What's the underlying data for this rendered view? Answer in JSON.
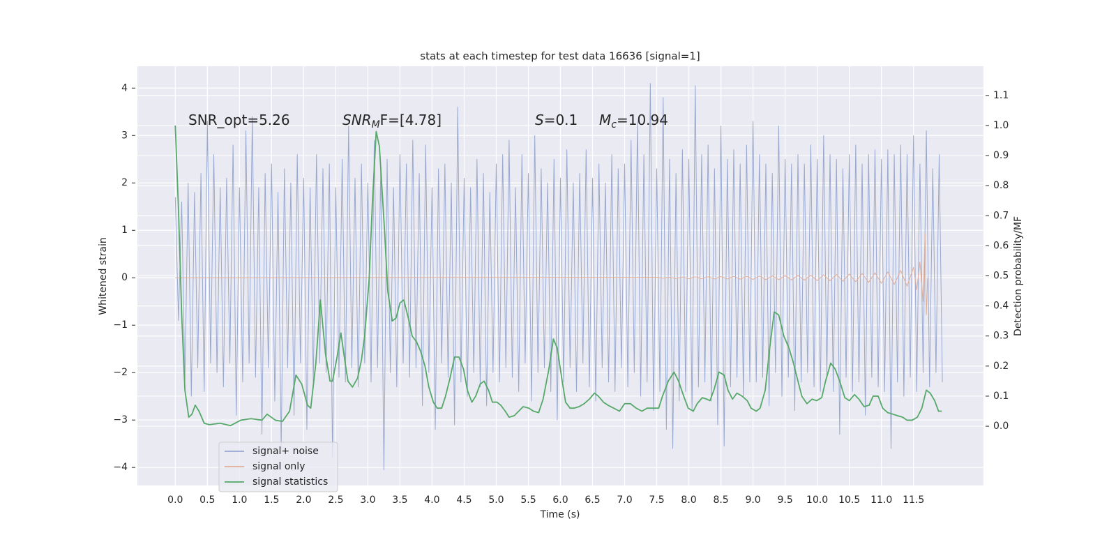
{
  "chart_data": {
    "type": "line",
    "title": "stats at each timestep for test data 16636 [signal=1]",
    "xlabel": "Time (s)",
    "ylabel": "Whitened strain",
    "y2label": "Detection probability/MF",
    "annotations": [
      {
        "text": "SNR_opt=5.26"
      },
      {
        "main": "SNR",
        "sub": "M",
        "tail": "F=[4.78]"
      },
      {
        "main": "S",
        "tail": "=0.1"
      },
      {
        "main": "M",
        "sub": "c",
        "tail": "=10.94"
      }
    ],
    "grid": true,
    "legend": "lower left",
    "xlim": [
      -0.59,
      12.59
    ],
    "ylim": [
      -4.38,
      4.46
    ],
    "y2lim": [
      -0.197,
      1.197
    ],
    "xticks": [
      {
        "value": 0,
        "label": "0.0"
      },
      0.5,
      {
        "value": 1,
        "label": "1.0"
      },
      1.5,
      {
        "value": 2,
        "label": "2.0"
      },
      2.5,
      {
        "value": 3,
        "label": "3.0"
      },
      3.5,
      {
        "value": 4,
        "label": "4.0"
      },
      4.5,
      {
        "value": 5,
        "label": "5.0"
      },
      5.5,
      {
        "value": 6,
        "label": "6.0"
      },
      6.5,
      {
        "value": 7,
        "label": "7.0"
      },
      7.5,
      {
        "value": 8,
        "label": "8.0"
      },
      8.5,
      {
        "value": 9,
        "label": "9.0"
      },
      9.5,
      {
        "value": 10,
        "label": "10.0"
      },
      10.5,
      {
        "value": 11,
        "label": "11.0"
      },
      11.5
    ],
    "yticks": [
      {
        "value": -4,
        "label": "−4"
      },
      {
        "value": -3,
        "label": "−3"
      },
      {
        "value": -2,
        "label": "−2"
      },
      {
        "value": -1,
        "label": "−1"
      },
      0,
      1,
      2,
      3,
      4
    ],
    "y2ticks": [
      {
        "value": 0,
        "label": "0.0"
      },
      0.1,
      0.2,
      0.3,
      0.4,
      0.5,
      0.6,
      0.7,
      0.8,
      0.9,
      {
        "value": 1,
        "label": "1.0"
      },
      1.1
    ],
    "series": [
      {
        "name": "signal+ noise",
        "color": "#98a8cf",
        "x": [
          0,
          0.05,
          0.1,
          0.15,
          0.2,
          0.25,
          0.3,
          0.35,
          0.4,
          0.45,
          0.5,
          0.55,
          0.6,
          0.65,
          0.7,
          0.75,
          0.8,
          0.85,
          0.9,
          0.95,
          1,
          1.05,
          1.1,
          1.15,
          1.2,
          1.25,
          1.3,
          1.35,
          1.4,
          1.45,
          1.5,
          1.55,
          1.6,
          1.65,
          1.7,
          1.75,
          1.8,
          1.85,
          1.9,
          1.95,
          2,
          2.05,
          2.1,
          2.15,
          2.2,
          2.25,
          2.3,
          2.35,
          2.4,
          2.45,
          2.5,
          2.55,
          2.6,
          2.65,
          2.7,
          2.75,
          2.8,
          2.85,
          2.9,
          2.95,
          3,
          3.05,
          3.1,
          3.15,
          3.2,
          3.25,
          3.3,
          3.35,
          3.4,
          3.45,
          3.5,
          3.55,
          3.6,
          3.65,
          3.7,
          3.75,
          3.8,
          3.85,
          3.9,
          3.95,
          4,
          4.05,
          4.1,
          4.15,
          4.2,
          4.25,
          4.3,
          4.35,
          4.4,
          4.45,
          4.5,
          4.55,
          4.6,
          4.65,
          4.7,
          4.75,
          4.8,
          4.85,
          4.9,
          4.95,
          5,
          5.05,
          5.1,
          5.15,
          5.2,
          5.25,
          5.3,
          5.35,
          5.4,
          5.45,
          5.5,
          5.55,
          5.6,
          5.65,
          5.7,
          5.75,
          5.8,
          5.85,
          5.9,
          5.95,
          6,
          6.05,
          6.1,
          6.15,
          6.2,
          6.25,
          6.3,
          6.35,
          6.4,
          6.45,
          6.5,
          6.55,
          6.6,
          6.65,
          6.7,
          6.75,
          6.8,
          6.85,
          6.9,
          6.95,
          7,
          7.05,
          7.1,
          7.15,
          7.2,
          7.25,
          7.3,
          7.35,
          7.4,
          7.45,
          7.5,
          7.55,
          7.6,
          7.65,
          7.7,
          7.75,
          7.8,
          7.85,
          7.9,
          7.95,
          8,
          8.05,
          8.1,
          8.15,
          8.2,
          8.25,
          8.3,
          8.35,
          8.4,
          8.45,
          8.5,
          8.55,
          8.6,
          8.65,
          8.7,
          8.75,
          8.8,
          8.85,
          8.9,
          8.95,
          9,
          9.05,
          9.1,
          9.15,
          9.2,
          9.25,
          9.3,
          9.35,
          9.4,
          9.45,
          9.5,
          9.55,
          9.6,
          9.65,
          9.7,
          9.75,
          9.8,
          9.85,
          9.9,
          9.95,
          10,
          10.05,
          10.1,
          10.15,
          10.2,
          10.25,
          10.3,
          10.35,
          10.4,
          10.45,
          10.5,
          10.55,
          10.6,
          10.65,
          10.7,
          10.75,
          10.8,
          10.85,
          10.9,
          10.95,
          11,
          11.05,
          11.1,
          11.15,
          11.2,
          11.25,
          11.3,
          11.35,
          11.4,
          11.45,
          11.5,
          11.55,
          11.6,
          11.65,
          11.7,
          11.75,
          11.8,
          11.85,
          11.9,
          11.95
        ],
        "values": [
          1.7,
          -0.9,
          1.6,
          -2.2,
          2.0,
          -2.5,
          1.8,
          -1.9,
          2.2,
          -2.4,
          3.3,
          -1.8,
          2.6,
          -2.0,
          1.9,
          -2.3,
          2.1,
          -1.8,
          2.8,
          -2.9,
          1.9,
          -2.2,
          3.1,
          -1.8,
          3.4,
          -2.1,
          1.9,
          -3.3,
          2.2,
          -1.9,
          2.4,
          -2.6,
          1.8,
          -3.6,
          2.3,
          -1.9,
          2.0,
          -2.9,
          2.6,
          -1.8,
          2.1,
          -3.2,
          1.9,
          -2.2,
          2.6,
          -1.8,
          2.3,
          -2.0,
          2.4,
          -3.8,
          1.9,
          -2.1,
          2.5,
          -2.2,
          3.2,
          -1.9,
          2.1,
          -2.3,
          2.4,
          -1.8,
          2.0,
          -2.2,
          2.9,
          -1.9,
          2.3,
          -4.05,
          2.5,
          -2.0,
          1.9,
          -2.3,
          2.6,
          -1.8,
          2.4,
          -2.1,
          2.9,
          -1.9,
          2.2,
          -2.7,
          2.8,
          -2.0,
          1.9,
          -3.2,
          2.3,
          -1.8,
          2.4,
          -2.1,
          2.0,
          -3.1,
          3.6,
          -2.2,
          2.1,
          -2.5,
          1.9,
          -2.0,
          2.5,
          -2.3,
          2.2,
          -2.7,
          1.8,
          -2.0,
          2.4,
          -2.2,
          2.6,
          -1.9,
          2.9,
          -2.1,
          1.9,
          -2.4,
          2.6,
          -1.8,
          2.2,
          -2.6,
          3.0,
          -2.0,
          2.3,
          -1.9,
          2.0,
          -2.4,
          2.5,
          -3.0,
          2.1,
          -2.2,
          2.7,
          -1.9,
          2.0,
          -2.4,
          2.2,
          -1.8,
          2.7,
          -2.3,
          2.1,
          -2.6,
          2.4,
          -1.9,
          2.0,
          -2.2,
          2.6,
          -2.4,
          2.3,
          -1.9,
          2.4,
          -2.3,
          2.9,
          -2.0,
          3.3,
          -2.5,
          2.6,
          -2.2,
          4.1,
          -2.8,
          2.3,
          -2.4,
          3.8,
          -3.2,
          2.5,
          -3.6,
          2.2,
          -2.6,
          2.7,
          -2.4,
          2.5,
          -2.8,
          4.05,
          -2.3,
          2.6,
          -2.2,
          2.8,
          -2.6,
          2.3,
          -3.1,
          3.2,
          -3.55,
          2.5,
          -2.3,
          2.7,
          -2.1,
          2.4,
          -2.5,
          2.8,
          -2.2,
          3.3,
          -2.2,
          2.6,
          -2.1,
          2.4,
          -2.7,
          2.2,
          -2.0,
          3.2,
          -2.5,
          2.5,
          -2.1,
          2.4,
          -2.8,
          2.6,
          -2.2,
          2.4,
          -2.0,
          2.8,
          -2.3,
          2.5,
          -2.4,
          3.0,
          -2.1,
          2.6,
          -2.4,
          2.5,
          -3.3,
          2.3,
          -2.1,
          2.6,
          -2.4,
          2.8,
          -2.2,
          2.4,
          -2.9,
          2.6,
          -2.1,
          2.7,
          -2.3,
          2.5,
          -2.4,
          2.7,
          -3.6,
          2.6,
          -2.2,
          2.8,
          -2.5,
          2.6,
          -2.1,
          3.0,
          -2.4,
          2.4,
          -2.0,
          3.1,
          -2.3,
          2.3,
          -2.0,
          2.6,
          -2.2
        ]
      },
      {
        "name": "signal only",
        "color": "#e3ad96",
        "x": [
          0,
          7.5,
          7.6,
          7.7,
          7.8,
          7.9,
          8,
          8.1,
          8.2,
          8.3,
          8.4,
          8.5,
          8.6,
          8.7,
          8.8,
          8.9,
          9,
          9.1,
          9.2,
          9.3,
          9.4,
          9.5,
          9.6,
          9.7,
          9.8,
          9.9,
          10,
          10.1,
          10.2,
          10.3,
          10.4,
          10.5,
          10.6,
          10.7,
          10.8,
          10.9,
          11,
          11.1,
          11.2,
          11.3,
          11.4,
          11.5,
          11.55,
          11.6,
          11.65,
          11.68,
          11.7,
          11.72
        ],
        "values": [
          0,
          0.01,
          -0.01,
          0.01,
          -0.015,
          0.015,
          -0.02,
          0.02,
          -0.02,
          0.02,
          -0.025,
          0.025,
          -0.025,
          0.03,
          -0.03,
          0.03,
          -0.035,
          0.035,
          -0.04,
          0.04,
          -0.04,
          0.045,
          -0.045,
          0.05,
          -0.05,
          0.055,
          -0.06,
          0.06,
          -0.065,
          0.07,
          -0.075,
          0.08,
          -0.085,
          0.09,
          -0.1,
          0.105,
          -0.115,
          0.125,
          -0.14,
          0.155,
          -0.18,
          0.22,
          -0.26,
          0.33,
          -0.5,
          0.92,
          -0.78,
          0
        ]
      },
      {
        "name": "signal statistics",
        "color": "#55a868",
        "axis": "y2",
        "x": [
          0,
          0.05,
          0.1,
          0.15,
          0.21,
          0.26,
          0.31,
          0.37,
          0.45,
          0.53,
          0.7,
          0.86,
          1.02,
          1.18,
          1.35,
          1.43,
          1.56,
          1.67,
          1.78,
          1.88,
          1.97,
          2.06,
          2.11,
          2.19,
          2.26,
          2.34,
          2.41,
          2.45,
          2.52,
          2.58,
          2.64,
          2.69,
          2.76,
          2.84,
          2.9,
          2.95,
          3.02,
          3.07,
          3.13,
          3.18,
          3.26,
          3.31,
          3.38,
          3.44,
          3.5,
          3.56,
          3.63,
          3.69,
          3.76,
          3.82,
          3.89,
          3.95,
          4.02,
          4.08,
          4.15,
          4.21,
          4.28,
          4.35,
          4.42,
          4.49,
          4.55,
          4.62,
          4.68,
          4.75,
          4.81,
          4.88,
          4.94,
          5.01,
          5.07,
          5.14,
          5.2,
          5.28,
          5.35,
          5.42,
          5.51,
          5.58,
          5.66,
          5.73,
          5.82,
          5.89,
          5.95,
          6.02,
          6.08,
          6.15,
          6.21,
          6.29,
          6.37,
          6.45,
          6.53,
          6.59,
          6.67,
          6.74,
          6.83,
          6.92,
          7,
          7.09,
          7.18,
          7.27,
          7.35,
          7.44,
          7.53,
          7.59,
          7.68,
          7.77,
          7.84,
          7.92,
          7.99,
          8.07,
          8.13,
          8.21,
          8.28,
          8.33,
          8.39,
          8.47,
          8.55,
          8.61,
          8.68,
          8.75,
          8.83,
          8.91,
          8.97,
          9.05,
          9.11,
          9.19,
          9.26,
          9.33,
          9.4,
          9.48,
          9.56,
          9.63,
          9.7,
          9.76,
          9.84,
          9.92,
          9.99,
          10.07,
          10.13,
          10.21,
          10.28,
          10.35,
          10.43,
          10.5,
          10.58,
          10.65,
          10.73,
          10.81,
          10.87,
          10.95,
          11.02,
          11.1,
          11.18,
          11.25,
          11.33,
          11.4,
          11.48,
          11.56,
          11.63,
          11.7,
          11.76,
          11.83,
          11.89,
          11.94
        ],
        "values": [
          1.0,
          0.72,
          0.37,
          0.12,
          0.03,
          0.04,
          0.07,
          0.05,
          0.01,
          0.005,
          0.01,
          0.002,
          0.02,
          0.025,
          0.02,
          0.04,
          0.02,
          0.016,
          0.05,
          0.17,
          0.14,
          0.07,
          0.06,
          0.21,
          0.42,
          0.24,
          0.15,
          0.15,
          0.23,
          0.31,
          0.22,
          0.15,
          0.13,
          0.16,
          0.22,
          0.3,
          0.49,
          0.74,
          0.98,
          0.93,
          0.65,
          0.45,
          0.35,
          0.36,
          0.41,
          0.42,
          0.36,
          0.3,
          0.28,
          0.25,
          0.2,
          0.13,
          0.08,
          0.06,
          0.06,
          0.1,
          0.16,
          0.23,
          0.23,
          0.19,
          0.12,
          0.08,
          0.1,
          0.14,
          0.15,
          0.12,
          0.08,
          0.08,
          0.07,
          0.05,
          0.03,
          0.035,
          0.05,
          0.065,
          0.06,
          0.05,
          0.045,
          0.09,
          0.19,
          0.29,
          0.26,
          0.16,
          0.08,
          0.06,
          0.06,
          0.065,
          0.075,
          0.09,
          0.11,
          0.1,
          0.08,
          0.07,
          0.06,
          0.05,
          0.075,
          0.075,
          0.06,
          0.05,
          0.06,
          0.06,
          0.06,
          0.1,
          0.15,
          0.18,
          0.15,
          0.1,
          0.06,
          0.05,
          0.075,
          0.095,
          0.09,
          0.085,
          0.12,
          0.18,
          0.17,
          0.12,
          0.09,
          0.11,
          0.1,
          0.085,
          0.06,
          0.05,
          0.06,
          0.12,
          0.26,
          0.38,
          0.37,
          0.3,
          0.26,
          0.21,
          0.15,
          0.1,
          0.075,
          0.09,
          0.085,
          0.095,
          0.15,
          0.21,
          0.19,
          0.15,
          0.095,
          0.085,
          0.105,
          0.09,
          0.065,
          0.07,
          0.1,
          0.1,
          0.06,
          0.045,
          0.04,
          0.035,
          0.03,
          0.02,
          0.02,
          0.03,
          0.06,
          0.12,
          0.11,
          0.085,
          0.05,
          0.05
        ]
      }
    ]
  }
}
